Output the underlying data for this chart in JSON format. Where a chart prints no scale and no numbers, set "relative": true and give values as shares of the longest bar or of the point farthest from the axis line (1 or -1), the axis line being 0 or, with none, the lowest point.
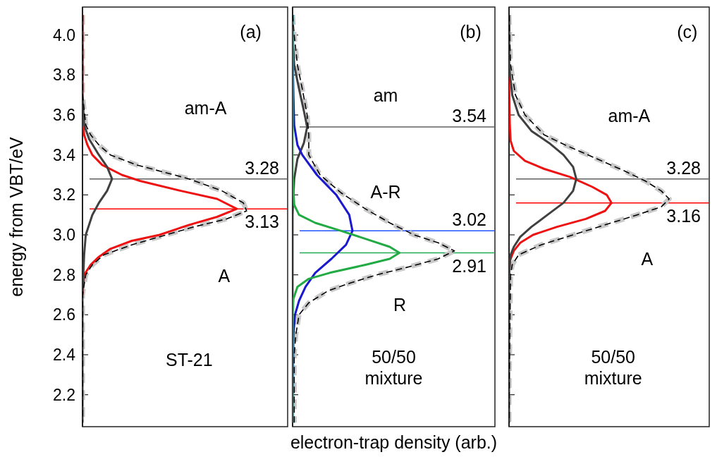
{
  "chart_data": [
    {
      "type": "line",
      "relative": true,
      "orientation": "horizontal",
      "ylabel": "energy from VBT/eV",
      "ylim": [
        2.04,
        4.14
      ],
      "yticks": [
        2.2,
        2.4,
        2.6,
        2.8,
        {
          "value": 3.0,
          "label": "3.0"
        },
        3.2,
        3.4,
        3.6,
        3.8,
        {
          "value": 4.0,
          "label": "4.0"
        }
      ],
      "tick_labels": "y",
      "series": [
        {
          "color": "#c8c8c8",
          "line_style": "dashed",
          "x": [
            4.1,
            3.7,
            3.55,
            3.5,
            3.45,
            3.4,
            3.35,
            3.28,
            3.22,
            3.16,
            3.12,
            3.08,
            3.04,
            3.0,
            2.95,
            2.9,
            2.85,
            2.8,
            2.7,
            2.2,
            2.06
          ],
          "values": [
            0,
            0,
            0.02,
            0.05,
            0.1,
            0.17,
            0.33,
            0.65,
            0.85,
            0.98,
            1.0,
            0.88,
            0.68,
            0.51,
            0.3,
            0.13,
            0.06,
            0.02,
            0,
            0,
            0
          ]
        },
        {
          "color": "#ee1111",
          "x": [
            4.1,
            3.6,
            3.5,
            3.45,
            3.4,
            3.35,
            3.3,
            3.27,
            3.22,
            3.18,
            3.13,
            3.09,
            3.05,
            3.0,
            2.97,
            2.93,
            2.89,
            2.85,
            2.8,
            2.7
          ],
          "values": [
            0,
            0,
            0.01,
            0.03,
            0.06,
            0.12,
            0.24,
            0.35,
            0.6,
            0.82,
            0.94,
            0.82,
            0.65,
            0.47,
            0.3,
            0.17,
            0.1,
            0.05,
            0.01,
            0
          ]
        },
        {
          "color": "#404040",
          "x": [
            4.1,
            3.7,
            3.55,
            3.48,
            3.4,
            3.34,
            3.28,
            3.22,
            3.16,
            3.1,
            3.0,
            2.9,
            2.7,
            2.2,
            2.06
          ],
          "values": [
            0,
            0,
            0.01,
            0.04,
            0.1,
            0.15,
            0.18,
            0.15,
            0.1,
            0.06,
            0.02,
            0.01,
            0,
            0,
            0
          ]
        },
        {
          "color": "#000000",
          "line_style": "dashed",
          "x": [
            4.1,
            3.7,
            3.55,
            3.5,
            3.45,
            3.4,
            3.35,
            3.28,
            3.22,
            3.16,
            3.12,
            3.08,
            3.04,
            3.0,
            2.95,
            2.9,
            2.85,
            2.8,
            2.7,
            2.2,
            2.06
          ],
          "values": [
            0,
            0,
            0.02,
            0.05,
            0.1,
            0.17,
            0.33,
            0.65,
            0.85,
            0.98,
            1.0,
            0.88,
            0.68,
            0.51,
            0.3,
            0.13,
            0.06,
            0.02,
            0,
            0,
            0
          ]
        }
      ],
      "ref_lines": [
        {
          "axis": "y",
          "value": 3.28,
          "label": "3.28",
          "color": "#606060"
        },
        {
          "axis": "y",
          "value": 3.13,
          "label": "3.13",
          "color": "#ff0000"
        }
      ],
      "annotations": [
        "(a)",
        "am-A",
        "A",
        "ST-21"
      ]
    },
    {
      "type": "line",
      "relative": true,
      "orientation": "horizontal",
      "xlabel": "electron-trap density (arb.)",
      "ylim": [
        2.04,
        4.14
      ],
      "yticks": [
        2.2,
        2.4,
        2.6,
        2.8,
        3,
        3.2,
        3.4,
        3.6,
        3.8,
        4
      ],
      "tick_labels": false,
      "series": [
        {
          "color": "#c8c8c8",
          "line_style": "dashed",
          "x": [
            4.1,
            4.0,
            3.85,
            3.73,
            3.6,
            3.5,
            3.4,
            3.3,
            3.21,
            3.13,
            3.06,
            3.0,
            2.96,
            2.92,
            2.88,
            2.84,
            2.8,
            2.76,
            2.72,
            2.66,
            2.6,
            2.5,
            2.4,
            2.2,
            2.06
          ],
          "values": [
            0,
            0.01,
            0.03,
            0.06,
            0.09,
            0.1,
            0.1,
            0.17,
            0.3,
            0.45,
            0.6,
            0.75,
            0.9,
            1.0,
            0.9,
            0.72,
            0.52,
            0.36,
            0.22,
            0.1,
            0.04,
            0.02,
            0.01,
            0.01,
            0.01
          ]
        },
        {
          "color": "#404040",
          "x": [
            4.1,
            4.0,
            3.85,
            3.73,
            3.62,
            3.54,
            3.46,
            3.38,
            3.28,
            3.1,
            2.2,
            2.06
          ],
          "values": [
            0,
            0,
            0.01,
            0.04,
            0.07,
            0.09,
            0.07,
            0.03,
            0.01,
            0,
            0,
            0
          ]
        },
        {
          "color": "#1a1acc",
          "x": [
            4.1,
            3.9,
            3.7,
            3.55,
            3.45,
            3.4,
            3.3,
            3.2,
            3.1,
            3.02,
            2.95,
            2.88,
            2.81,
            2.74,
            2.67,
            2.6,
            2.5,
            2.2,
            2.06
          ],
          "values": [
            0,
            0,
            0.005,
            0.01,
            0.03,
            0.06,
            0.15,
            0.27,
            0.35,
            0.37,
            0.33,
            0.24,
            0.14,
            0.08,
            0.04,
            0.015,
            0.005,
            0,
            0
          ]
        },
        {
          "color": "#22aa44",
          "x": [
            4.1,
            3.3,
            3.15,
            3.1,
            3.06,
            3.02,
            2.98,
            2.94,
            2.91,
            2.88,
            2.85,
            2.81,
            2.78,
            2.74,
            2.68,
            2.6,
            2.2,
            2.06
          ],
          "values": [
            0,
            0,
            0.01,
            0.04,
            0.14,
            0.3,
            0.45,
            0.6,
            0.66,
            0.6,
            0.45,
            0.23,
            0.1,
            0.03,
            0.005,
            0,
            0,
            0
          ]
        },
        {
          "color": "#000000",
          "line_style": "dashed",
          "x": [
            4.1,
            4.0,
            3.85,
            3.73,
            3.6,
            3.5,
            3.4,
            3.3,
            3.21,
            3.13,
            3.06,
            3.0,
            2.96,
            2.92,
            2.88,
            2.84,
            2.8,
            2.76,
            2.72,
            2.66,
            2.6,
            2.5,
            2.4,
            2.2,
            2.06
          ],
          "values": [
            0,
            0.01,
            0.03,
            0.06,
            0.09,
            0.1,
            0.1,
            0.17,
            0.3,
            0.45,
            0.6,
            0.75,
            0.9,
            1.0,
            0.9,
            0.72,
            0.52,
            0.36,
            0.22,
            0.1,
            0.04,
            0.02,
            0.01,
            0.01,
            0.01
          ]
        }
      ],
      "ref_lines": [
        {
          "axis": "y",
          "value": 3.54,
          "label": "3.54",
          "color": "#606060"
        },
        {
          "axis": "y",
          "value": 3.02,
          "label": "3.02",
          "color": "#2255ff"
        },
        {
          "axis": "y",
          "value": 2.91,
          "label": "2.91",
          "color": "#22aa55"
        }
      ],
      "annotations": [
        "(b)",
        "am",
        "A-R",
        "R",
        "50/50\nmixture"
      ]
    },
    {
      "type": "line",
      "relative": true,
      "orientation": "horizontal",
      "ylim": [
        2.04,
        4.14
      ],
      "yticks": [
        2.2,
        2.4,
        2.6,
        2.8,
        3,
        3.2,
        3.4,
        3.6,
        3.8,
        4
      ],
      "tick_labels": false,
      "series": [
        {
          "color": "#c8c8c8",
          "line_style": "dashed",
          "x": [
            4.1,
            3.85,
            3.7,
            3.6,
            3.5,
            3.45,
            3.38,
            3.32,
            3.27,
            3.22,
            3.18,
            3.14,
            3.1,
            3.05,
            3.0,
            2.95,
            2.9,
            2.85,
            2.8,
            2.2,
            2.06
          ],
          "values": [
            0,
            0.01,
            0.04,
            0.1,
            0.22,
            0.35,
            0.55,
            0.72,
            0.85,
            0.95,
            1.0,
            0.95,
            0.8,
            0.6,
            0.4,
            0.2,
            0.06,
            0.02,
            0.01,
            0,
            0
          ]
        },
        {
          "color": "#ee1111",
          "x": [
            4.1,
            3.8,
            3.55,
            3.47,
            3.42,
            3.37,
            3.33,
            3.29,
            3.24,
            3.2,
            3.16,
            3.12,
            3.08,
            3.04,
            3.0,
            2.96,
            2.92,
            2.87,
            2.8
          ],
          "values": [
            0,
            0,
            0.005,
            0.01,
            0.03,
            0.1,
            0.22,
            0.38,
            0.52,
            0.61,
            0.64,
            0.6,
            0.48,
            0.3,
            0.15,
            0.07,
            0.03,
            0.005,
            0
          ]
        },
        {
          "color": "#404040",
          "x": [
            4.1,
            3.85,
            3.7,
            3.6,
            3.52,
            3.46,
            3.4,
            3.34,
            3.28,
            3.22,
            3.16,
            3.1,
            3.04,
            2.99,
            2.94,
            2.9,
            2.8,
            2.2,
            2.06
          ],
          "values": [
            0,
            0,
            0.02,
            0.06,
            0.14,
            0.25,
            0.34,
            0.4,
            0.42,
            0.4,
            0.34,
            0.24,
            0.14,
            0.07,
            0.03,
            0.01,
            0,
            0,
            0
          ]
        },
        {
          "color": "#000000",
          "line_style": "dashed",
          "x": [
            4.1,
            3.85,
            3.7,
            3.6,
            3.5,
            3.45,
            3.38,
            3.32,
            3.27,
            3.22,
            3.18,
            3.14,
            3.1,
            3.05,
            3.0,
            2.95,
            2.9,
            2.85,
            2.8,
            2.2,
            2.06
          ],
          "values": [
            0,
            0.01,
            0.04,
            0.1,
            0.22,
            0.35,
            0.55,
            0.72,
            0.85,
            0.95,
            1.0,
            0.95,
            0.8,
            0.6,
            0.4,
            0.2,
            0.06,
            0.02,
            0.01,
            0,
            0
          ]
        }
      ],
      "ref_lines": [
        {
          "axis": "y",
          "value": 3.28,
          "label": "3.28",
          "color": "#606060"
        },
        {
          "axis": "y",
          "value": 3.16,
          "label": "3.16",
          "color": "#ff0000"
        }
      ],
      "annotations": [
        "(c)",
        "am-A",
        "A",
        "50/50\nmixture"
      ]
    }
  ]
}
